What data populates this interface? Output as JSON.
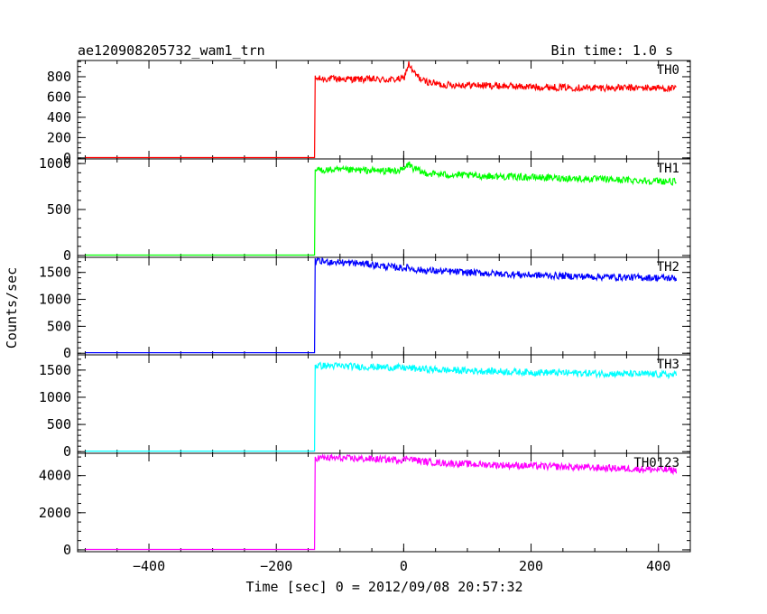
{
  "chart_data": {
    "type": "line",
    "title": "ae120908205732_wam1_trn",
    "bin_time_label": "Bin time: 1.0 s",
    "xlabel": "Time [sec] 0 = 2012/09/08 20:57:32",
    "ylabel": "Counts/sec",
    "xlim": [
      -512,
      450
    ],
    "x_ticks": [
      -400,
      -200,
      0,
      200,
      400
    ],
    "x_tick_labels": [
      "−400",
      "−200",
      "0",
      "200",
      "400"
    ],
    "grid": false,
    "legend": "none",
    "panels": [
      {
        "name": "TH0",
        "color": "#ff0000",
        "ylim": [
          -10,
          960
        ],
        "y_ticks": [
          0,
          200,
          400,
          600,
          800
        ],
        "y_tick_labels": [
          "0",
          "200",
          "400",
          "600",
          "800"
        ],
        "x": [
          -500,
          -140,
          -139,
          -120,
          -60,
          -20,
          0,
          8,
          14,
          30,
          60,
          100,
          200,
          300,
          400,
          428
        ],
        "values": [
          3,
          3,
          780,
          780,
          775,
          770,
          780,
          930,
          850,
          760,
          720,
          720,
          700,
          690,
          690,
          680
        ]
      },
      {
        "name": "TH1",
        "color": "#00ff00",
        "ylim": [
          -20,
          1050
        ],
        "y_ticks": [
          0,
          500,
          1000
        ],
        "y_tick_labels": [
          "0",
          "500",
          "1000"
        ],
        "x": [
          -500,
          -140,
          -139,
          -120,
          -60,
          -20,
          0,
          8,
          14,
          30,
          60,
          100,
          200,
          300,
          400,
          428
        ],
        "values": [
          5,
          5,
          930,
          930,
          925,
          920,
          930,
          1000,
          950,
          900,
          880,
          870,
          850,
          830,
          810,
          800
        ]
      },
      {
        "name": "TH2",
        "color": "#0000ff",
        "ylim": [
          -30,
          1780
        ],
        "y_ticks": [
          0,
          500,
          1000,
          1500
        ],
        "y_tick_labels": [
          "0",
          "500",
          "1000",
          "1500"
        ],
        "x": [
          -500,
          -140,
          -139,
          -120,
          -60,
          -20,
          0,
          8,
          14,
          30,
          60,
          100,
          200,
          300,
          400,
          428
        ],
        "values": [
          10,
          10,
          1700,
          1700,
          1660,
          1600,
          1580,
          1590,
          1560,
          1540,
          1520,
          1500,
          1450,
          1420,
          1400,
          1390
        ]
      },
      {
        "name": "TH3",
        "color": "#00ffff",
        "ylim": [
          -30,
          1780
        ],
        "y_ticks": [
          0,
          500,
          1000,
          1500
        ],
        "y_tick_labels": [
          "0",
          "500",
          "1000",
          "1500"
        ],
        "x": [
          -500,
          -140,
          -139,
          -120,
          -60,
          -20,
          0,
          8,
          14,
          30,
          60,
          100,
          200,
          300,
          400,
          428
        ],
        "values": [
          10,
          10,
          1580,
          1580,
          1560,
          1550,
          1540,
          1540,
          1530,
          1520,
          1500,
          1490,
          1460,
          1440,
          1420,
          1410
        ]
      },
      {
        "name": "TH0123",
        "color": "#ff00ff",
        "ylim": [
          -100,
          5200
        ],
        "y_ticks": [
          0,
          2000,
          4000
        ],
        "y_tick_labels": [
          "0",
          "2000",
          "4000"
        ],
        "x": [
          -500,
          -140,
          -139,
          -120,
          -60,
          -20,
          0,
          8,
          14,
          30,
          60,
          100,
          200,
          300,
          400,
          428
        ],
        "values": [
          20,
          20,
          4950,
          4950,
          4900,
          4860,
          4850,
          5000,
          4860,
          4760,
          4680,
          4620,
          4520,
          4420,
          4320,
          4280
        ]
      }
    ]
  }
}
